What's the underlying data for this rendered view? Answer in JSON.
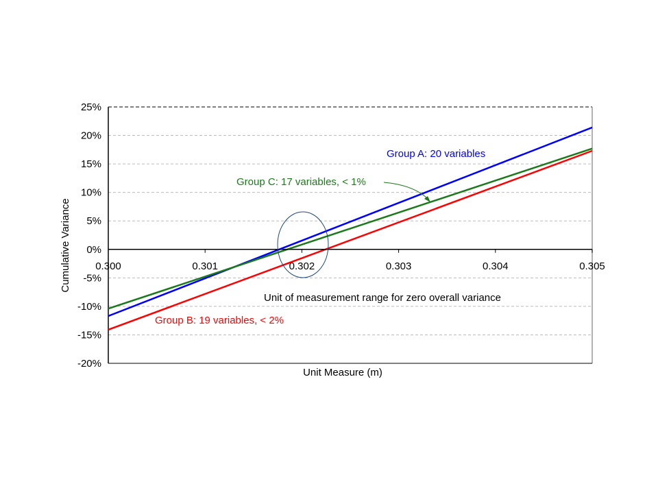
{
  "chart_data": {
    "type": "line",
    "title": "",
    "xlabel": "Unit Measure (m)",
    "ylabel": "Cumulative Variance",
    "xlim": [
      0.3,
      0.305
    ],
    "ylim": [
      -20,
      25
    ],
    "x_ticks": [
      "0.300",
      "0.301",
      "0.302",
      "0.303",
      "0.304",
      "0.305"
    ],
    "y_ticks": [
      "-20%",
      "-15%",
      "-10%",
      "-5%",
      "0%",
      "5%",
      "10%",
      "15%",
      "20%",
      "25%"
    ],
    "grid": "horizontal dashed",
    "series": [
      {
        "name": "Group A: 20 variables",
        "color": "#0000ff",
        "x": [
          0.3,
          0.305
        ],
        "y": [
          -11.7,
          21.4
        ]
      },
      {
        "name": "Group B: 19 variables, < 2%",
        "color": "#ff0000",
        "x": [
          0.3,
          0.305
        ],
        "y": [
          -14.1,
          17.3
        ]
      },
      {
        "name": "Group C: 17 variables, < 1%",
        "color": "#1a7a1a",
        "x": [
          0.3,
          0.305
        ],
        "y": [
          -10.4,
          17.7
        ]
      }
    ],
    "annotations": {
      "zero_range": "Unit of measurement range for zero overall variance"
    }
  }
}
